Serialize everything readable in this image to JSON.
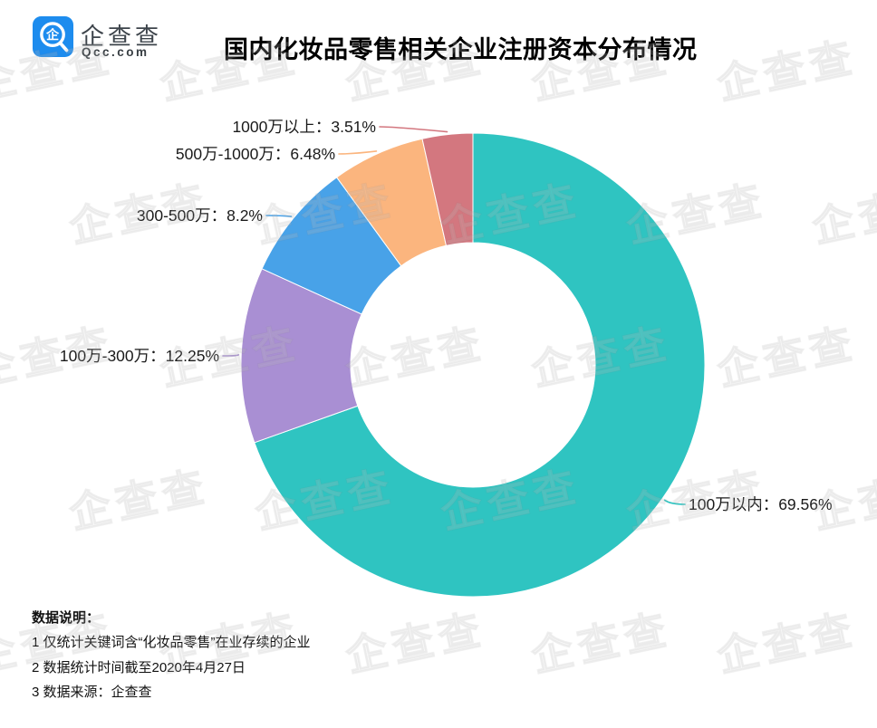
{
  "header": {
    "brand": "企查查",
    "domain": "Qcc.com",
    "logo_color": "#1d8cee",
    "logo_glyph": "企"
  },
  "watermark": {
    "text": "企查查"
  },
  "chart_data": {
    "type": "pie",
    "subtype": "donut",
    "title": "国内化妆品零售相关企业注册资本分布情况",
    "unit": "%",
    "start_angle": "top",
    "direction": "clockwise",
    "inner_radius_ratio": 0.53,
    "legend_position": "none",
    "series": [
      {
        "name": "100万以内",
        "value": 69.56,
        "color": "#2fc4c1",
        "label": "100万以内：69.56%"
      },
      {
        "name": "100万-300万",
        "value": 12.25,
        "color": "#a98fd3",
        "label": "100万-300万：12.25%"
      },
      {
        "name": "300-500万",
        "value": 8.2,
        "color": "#48a2e8",
        "label": "300-500万：8.2%"
      },
      {
        "name": "500万-1000万",
        "value": 6.48,
        "color": "#fbb57e",
        "label": "500万-1000万：6.48%"
      },
      {
        "name": "1000万以上",
        "value": 3.51,
        "color": "#d3777f",
        "label": "1000万以上：3.51%"
      }
    ]
  },
  "notes": {
    "heading": "数据说明：",
    "items": [
      "1 仅统计关键词含“化妆品零售”在业存续的企业",
      "2 数据统计时间截至2020年4月27日",
      "3 数据来源：企查查"
    ]
  }
}
